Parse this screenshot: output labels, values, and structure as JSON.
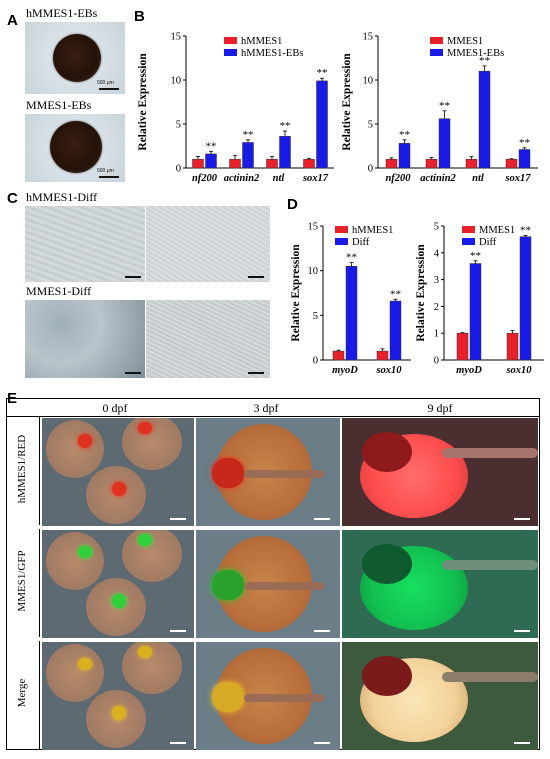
{
  "panels": {
    "A": {
      "label": "A",
      "captions": [
        "hMMES1-EBs",
        "MMES1-EBs"
      ],
      "scalebar": "500 μm"
    },
    "B": {
      "label": "B"
    },
    "C": {
      "label": "C",
      "captions": [
        "hMMES1-Diff",
        "MMES1-Diff"
      ]
    },
    "D": {
      "label": "D"
    },
    "E": {
      "label": "E",
      "columns": [
        "0 dpf",
        "3 dpf",
        "9 dpf"
      ],
      "rows": [
        "hMMES1/RED",
        "MMES1/GFP",
        "Merge"
      ]
    }
  },
  "colors": {
    "red": "#e8202a",
    "blue": "#1a1ae6"
  },
  "chart_data": [
    {
      "id": "B-left",
      "type": "bar",
      "ylabel": "Relative Expression",
      "ylim": [
        0,
        15
      ],
      "yticks": [
        0,
        5,
        10,
        15
      ],
      "categories": [
        "nf200",
        "actinin2",
        "ntl",
        "sox17"
      ],
      "series": [
        {
          "name": "hMMES1",
          "color": "#e8202a",
          "values": [
            1.0,
            1.0,
            1.0,
            1.0
          ],
          "err": [
            0.3,
            0.4,
            0.3,
            0.1
          ]
        },
        {
          "name": "hMMES1-EBs",
          "color": "#1a1ae6",
          "values": [
            1.6,
            2.9,
            3.6,
            9.9
          ],
          "err": [
            0.3,
            0.3,
            0.6,
            0.3
          ]
        }
      ],
      "significance": [
        "**",
        "**",
        "**",
        "**"
      ]
    },
    {
      "id": "B-right",
      "type": "bar",
      "ylabel": "Relative Expression",
      "ylim": [
        0,
        15
      ],
      "yticks": [
        0,
        5,
        10,
        15
      ],
      "categories": [
        "nf200",
        "actinin2",
        "ntl",
        "sox17"
      ],
      "series": [
        {
          "name": "MMES1",
          "color": "#e8202a",
          "values": [
            1.0,
            1.0,
            1.0,
            1.0
          ],
          "err": [
            0.15,
            0.2,
            0.3,
            0.05
          ]
        },
        {
          "name": "MMES1-EBs",
          "color": "#1a1ae6",
          "values": [
            2.8,
            5.6,
            11.0,
            2.1
          ],
          "err": [
            0.4,
            0.9,
            0.6,
            0.2
          ]
        }
      ],
      "significance": [
        "**",
        "**",
        "**",
        "**"
      ]
    },
    {
      "id": "D-left",
      "type": "bar",
      "ylabel": "Relative Expression",
      "ylim": [
        0,
        15
      ],
      "yticks": [
        0,
        5,
        10,
        15
      ],
      "categories": [
        "myoD",
        "sox10"
      ],
      "series": [
        {
          "name": "hMMES1",
          "color": "#e8202a",
          "values": [
            1.0,
            1.0
          ],
          "err": [
            0.1,
            0.25
          ]
        },
        {
          "name": "Diff",
          "color": "#1a1ae6",
          "values": [
            10.5,
            6.6
          ],
          "err": [
            0.4,
            0.2
          ]
        }
      ],
      "significance": [
        "**",
        "**"
      ]
    },
    {
      "id": "D-right",
      "type": "bar",
      "ylabel": "Relative Expression",
      "ylim": [
        0,
        5
      ],
      "yticks": [
        0,
        1,
        2,
        3,
        4,
        5
      ],
      "categories": [
        "myoD",
        "sox10"
      ],
      "series": [
        {
          "name": "MMES1",
          "color": "#e8202a",
          "values": [
            1.0,
            1.0
          ],
          "err": [
            0.02,
            0.1
          ]
        },
        {
          "name": "Diff",
          "color": "#1a1ae6",
          "values": [
            3.6,
            4.6
          ],
          "err": [
            0.1,
            0.05
          ]
        }
      ],
      "significance": [
        "**",
        "**"
      ]
    }
  ]
}
